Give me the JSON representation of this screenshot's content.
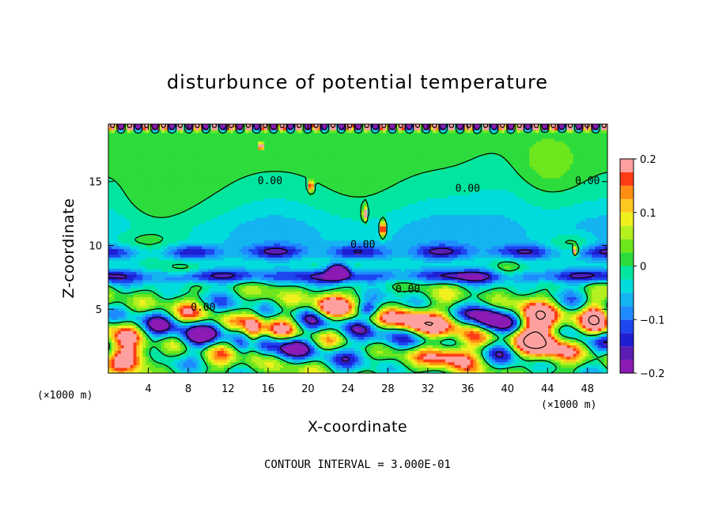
{
  "chart_data": {
    "type": "heatmap",
    "title": "disturbunce of potential temperature",
    "xlabel": "X-coordinate",
    "ylabel": "Z-coordinate",
    "x_unit_left": "(×1000 m)",
    "x_unit_right": "(×1000 m)",
    "xlim": [
      0,
      50
    ],
    "ylim": [
      0,
      19.5
    ],
    "x_ticks": [
      4,
      8,
      12,
      16,
      20,
      24,
      28,
      32,
      36,
      40,
      44,
      48
    ],
    "y_ticks": [
      5,
      10,
      15
    ],
    "colorbar": {
      "range": [
        -0.2,
        0.2
      ],
      "ticks": [
        {
          "value": 0.2,
          "label": "0.2"
        },
        {
          "value": 0.1,
          "label": "0.1"
        },
        {
          "value": 0.0,
          "label": "0"
        },
        {
          "value": -0.1,
          "label": "−0.1"
        },
        {
          "value": -0.2,
          "label": "−0.2"
        }
      ],
      "levels": [
        {
          "min": -0.2,
          "max": -0.175,
          "color": "#8c1ab4"
        },
        {
          "min": -0.175,
          "max": -0.15,
          "color": "#5a1eb4"
        },
        {
          "min": -0.15,
          "max": -0.125,
          "color": "#1e1ed2"
        },
        {
          "min": -0.125,
          "max": -0.1,
          "color": "#1e46f0"
        },
        {
          "min": -0.1,
          "max": -0.075,
          "color": "#1e8cff"
        },
        {
          "min": -0.075,
          "max": -0.05,
          "color": "#14b4f0"
        },
        {
          "min": -0.05,
          "max": -0.025,
          "color": "#00dcdc"
        },
        {
          "min": -0.025,
          "max": 0.0,
          "color": "#00e6a0"
        },
        {
          "min": 0.0,
          "max": 0.025,
          "color": "#2cdc3c"
        },
        {
          "min": 0.025,
          "max": 0.05,
          "color": "#6ee61e"
        },
        {
          "min": 0.05,
          "max": 0.075,
          "color": "#b4f01e"
        },
        {
          "min": 0.075,
          "max": 0.1,
          "color": "#f0f01e"
        },
        {
          "min": 0.1,
          "max": 0.125,
          "color": "#ffc81e"
        },
        {
          "min": 0.125,
          "max": 0.15,
          "color": "#ff8c14"
        },
        {
          "min": 0.15,
          "max": 0.175,
          "color": "#ff3c14"
        },
        {
          "min": 0.175,
          "max": 0.2,
          "color": "#ffa0a0"
        }
      ]
    },
    "contour_labels": [
      {
        "x": 16.2,
        "z": 14.8,
        "text": "0.00"
      },
      {
        "x": 9.5,
        "z": 4.9,
        "text": "0.00"
      },
      {
        "x": 25.5,
        "z": 9.8,
        "text": "0.00"
      },
      {
        "x": 36.0,
        "z": 14.2,
        "text": "0.00"
      },
      {
        "x": 48.0,
        "z": 14.8,
        "text": "0.00"
      },
      {
        "x": 30.0,
        "z": 6.3,
        "text": "0.00"
      }
    ],
    "contour_interval": "CONTOUR INTERVAL = 3.000E-01"
  }
}
